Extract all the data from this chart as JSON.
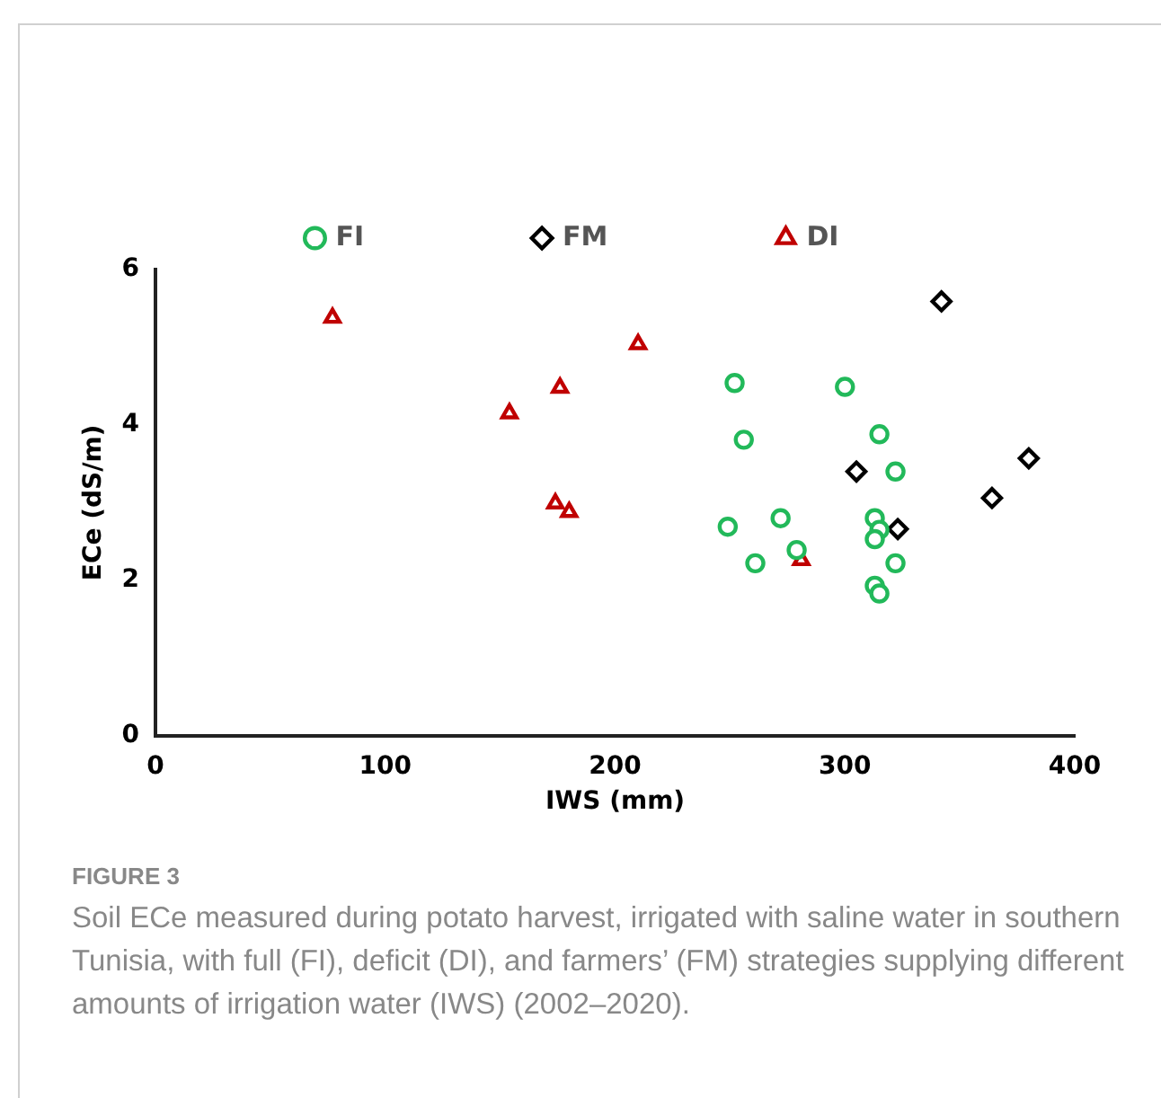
{
  "chart_data": {
    "type": "scatter",
    "xlabel": "IWS (mm)",
    "ylabel": "ECe (dS/m)",
    "xlim": [
      0,
      400
    ],
    "xticks": [
      0,
      100,
      200,
      300,
      400
    ],
    "ylim": [
      0,
      6
    ],
    "yticks": [
      0,
      2,
      4,
      6
    ],
    "grid": false,
    "legend": "top",
    "annotations": [
      "FIGURE 3",
      "Soil ECe measured during potato harvest, irrigated with saline water in southern Tunisia, with full (FI), deficit (DI), and farmers’ (FM) strategies supplying different amounts of irrigation water (IWS) (2002–2020)."
    ],
    "series": [
      {
        "name": "FI",
        "color": "#22b95a",
        "marker": "circle",
        "x": [
          252,
          300,
          256,
          315,
          322,
          249,
          272,
          313,
          315,
          313,
          279,
          261,
          322,
          313,
          315
        ],
        "values": [
          4.54,
          4.49,
          3.81,
          3.88,
          3.4,
          2.69,
          2.8,
          2.8,
          2.65,
          2.53,
          2.39,
          2.22,
          2.22,
          1.93,
          1.83
        ]
      },
      {
        "name": "FM",
        "color": "#000000",
        "marker": "diamond",
        "x": [
          342,
          305,
          380,
          364,
          323
        ],
        "values": [
          5.59,
          3.4,
          3.57,
          3.06,
          2.66
        ]
      },
      {
        "name": "DI",
        "color": "#c00000",
        "marker": "triangle",
        "x": [
          77,
          210,
          176,
          154,
          174,
          180,
          281
        ],
        "values": [
          5.38,
          5.04,
          4.48,
          4.15,
          2.99,
          2.88,
          2.26
        ]
      }
    ]
  }
}
